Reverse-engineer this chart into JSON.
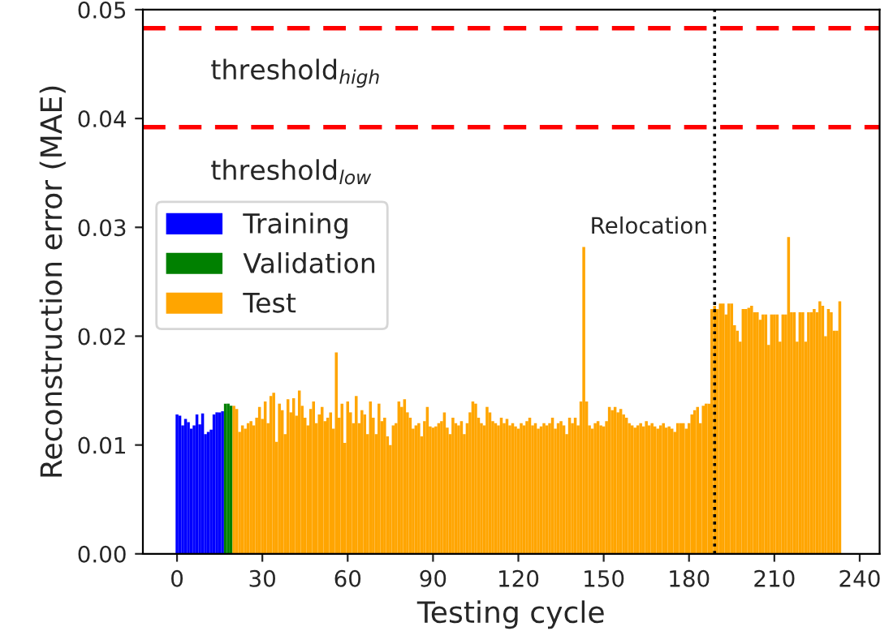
{
  "chart_data": {
    "type": "bar",
    "xlabel": "Testing cycle",
    "ylabel": "Reconstruction error (MAE)",
    "xlim": [
      -12,
      247
    ],
    "ylim": [
      0,
      0.05
    ],
    "xticks": [
      0,
      30,
      60,
      90,
      120,
      150,
      180,
      210,
      240
    ],
    "yticks": [
      {
        "value": 0,
        "label": "0.00"
      },
      {
        "value": 0.01,
        "label": "0.01"
      },
      {
        "value": 0.02,
        "label": "0.02"
      },
      {
        "value": 0.03,
        "label": "0.03"
      },
      {
        "value": 0.04,
        "label": "0.04"
      },
      {
        "value": 0.05,
        "label": "0.05"
      }
    ],
    "grid": false,
    "legend": "left",
    "ref_lines": [
      {
        "axis": "y",
        "value": 0.0483,
        "label": "threshold$_{high}$",
        "color": "#ff0000",
        "line_style": "dashed"
      },
      {
        "axis": "y",
        "value": 0.0392,
        "label": "threshold$_{low}$",
        "color": "#ff0000",
        "line_style": "dashed"
      },
      {
        "axis": "x",
        "value": 189,
        "label": "Relocation",
        "color": "#000000",
        "line_style": "dotted"
      }
    ],
    "series": [
      {
        "name": "Training",
        "color": "#0000ff",
        "x": [
          0,
          1,
          2,
          3,
          4,
          5,
          6,
          7,
          8,
          9,
          10,
          11,
          12,
          13,
          14,
          15,
          16
        ],
        "values": [
          0.0128,
          0.0127,
          0.0118,
          0.0124,
          0.0121,
          0.0115,
          0.0118,
          0.0128,
          0.0119,
          0.0129,
          0.011,
          0.0112,
          0.0114,
          0.0128,
          0.013,
          0.013,
          0.0131
        ]
      },
      {
        "name": "Validation",
        "color": "#008000",
        "x": [
          17,
          18,
          19
        ],
        "values": [
          0.0138,
          0.0138,
          0.0136
        ]
      },
      {
        "name": "Test",
        "color": "#ffa500",
        "x": [
          20,
          21,
          22,
          23,
          24,
          25,
          26,
          27,
          28,
          29,
          30,
          31,
          32,
          33,
          34,
          35,
          36,
          37,
          38,
          39,
          40,
          41,
          42,
          43,
          44,
          45,
          46,
          47,
          48,
          49,
          50,
          51,
          52,
          53,
          54,
          55,
          56,
          57,
          58,
          59,
          60,
          61,
          62,
          63,
          64,
          65,
          66,
          67,
          68,
          69,
          70,
          71,
          72,
          73,
          74,
          75,
          76,
          77,
          78,
          79,
          80,
          81,
          82,
          83,
          84,
          85,
          86,
          87,
          88,
          89,
          90,
          91,
          92,
          93,
          94,
          95,
          96,
          97,
          98,
          99,
          100,
          101,
          102,
          103,
          104,
          105,
          106,
          107,
          108,
          109,
          110,
          111,
          112,
          113,
          114,
          115,
          116,
          117,
          118,
          119,
          120,
          121,
          122,
          123,
          124,
          125,
          126,
          127,
          128,
          129,
          130,
          131,
          132,
          133,
          134,
          135,
          136,
          137,
          138,
          139,
          140,
          141,
          142,
          143,
          144,
          145,
          146,
          147,
          148,
          149,
          150,
          151,
          152,
          153,
          154,
          155,
          156,
          157,
          158,
          159,
          160,
          161,
          162,
          163,
          164,
          165,
          166,
          167,
          168,
          169,
          170,
          171,
          172,
          173,
          174,
          175,
          176,
          177,
          178,
          179,
          180,
          181,
          182,
          183,
          184,
          185,
          186,
          187,
          188,
          189,
          190,
          191,
          192,
          193,
          194,
          195,
          196,
          197,
          198,
          199,
          200,
          201,
          202,
          203,
          204,
          205,
          206,
          207,
          208,
          209,
          210,
          211,
          212,
          213,
          214,
          215,
          216,
          217,
          218,
          219,
          220,
          221,
          222,
          223,
          224,
          225,
          226,
          227,
          228,
          229,
          230,
          231,
          232,
          233
        ],
        "values": [
          0.0136,
          0.0133,
          0.0112,
          0.0118,
          0.0115,
          0.012,
          0.0122,
          0.0118,
          0.0125,
          0.0135,
          0.0124,
          0.014,
          0.012,
          0.0145,
          0.0148,
          0.0103,
          0.0138,
          0.0132,
          0.011,
          0.0142,
          0.013,
          0.0143,
          0.0127,
          0.015,
          0.0136,
          0.0125,
          0.0118,
          0.0133,
          0.014,
          0.012,
          0.0128,
          0.0135,
          0.0122,
          0.0125,
          0.013,
          0.0115,
          0.0185,
          0.0125,
          0.0138,
          0.0102,
          0.014,
          0.013,
          0.012,
          0.0145,
          0.012,
          0.0132,
          0.0128,
          0.011,
          0.014,
          0.0125,
          0.011,
          0.0138,
          0.0122,
          0.0125,
          0.0108,
          0.01,
          0.0118,
          0.012,
          0.014,
          0.0135,
          0.0142,
          0.013,
          0.0125,
          0.0115,
          0.0118,
          0.012,
          0.0108,
          0.0122,
          0.0135,
          0.0117,
          0.0116,
          0.0117,
          0.012,
          0.0122,
          0.013,
          0.0116,
          0.011,
          0.0125,
          0.012,
          0.0118,
          0.0122,
          0.011,
          0.012,
          0.013,
          0.014,
          0.0138,
          0.0125,
          0.012,
          0.0118,
          0.0135,
          0.013,
          0.0122,
          0.012,
          0.0118,
          0.0125,
          0.012,
          0.0124,
          0.0118,
          0.012,
          0.0117,
          0.0115,
          0.012,
          0.0118,
          0.0122,
          0.0125,
          0.0118,
          0.012,
          0.0115,
          0.0117,
          0.012,
          0.0118,
          0.012,
          0.0125,
          0.0115,
          0.012,
          0.0122,
          0.0118,
          0.011,
          0.0125,
          0.012,
          0.0125,
          0.0118,
          0.014,
          0.0282,
          0.014,
          0.0118,
          0.0115,
          0.012,
          0.0122,
          0.0118,
          0.0117,
          0.0122,
          0.0135,
          0.0132,
          0.0135,
          0.013,
          0.0133,
          0.0128,
          0.0125,
          0.012,
          0.0118,
          0.0116,
          0.0118,
          0.012,
          0.0117,
          0.0122,
          0.0118,
          0.012,
          0.0117,
          0.0115,
          0.0118,
          0.012,
          0.0116,
          0.0117,
          0.0115,
          0.0112,
          0.012,
          0.012,
          0.012,
          0.0115,
          0.012,
          0.0128,
          0.0132,
          0.0135,
          0.012,
          0.0136,
          0.0138,
          0.0138,
          0.0225,
          0.0228,
          0.0225,
          0.023,
          0.023,
          0.022,
          0.023,
          0.023,
          0.021,
          0.0205,
          0.0195,
          0.0225,
          0.0225,
          0.0226,
          0.0228,
          0.0222,
          0.0222,
          0.0215,
          0.022,
          0.022,
          0.0192,
          0.022,
          0.022,
          0.022,
          0.0195,
          0.022,
          0.022,
          0.0291,
          0.0222,
          0.0222,
          0.0195,
          0.0222,
          0.0222,
          0.0195,
          0.0222,
          0.0222,
          0.0225,
          0.0222,
          0.0232,
          0.0228,
          0.02,
          0.0225,
          0.0222,
          0.0205,
          0.0205,
          0.0232
        ]
      }
    ]
  }
}
